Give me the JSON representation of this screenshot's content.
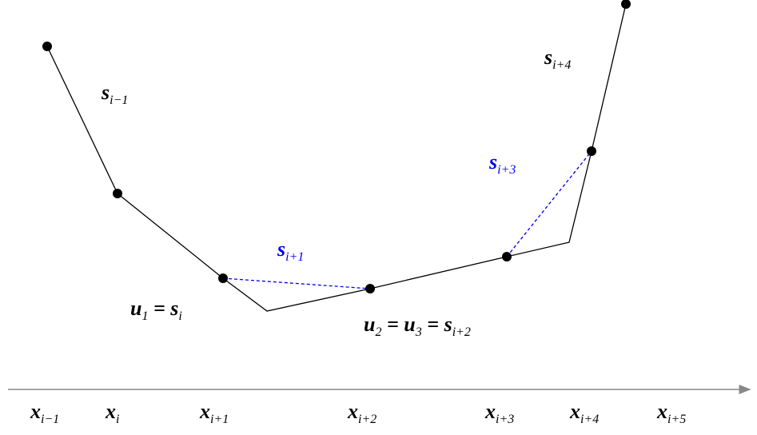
{
  "curve_labels": [
    {
      "segments": [
        {
          "text": "s",
          "sub": "i−1"
        }
      ]
    },
    {
      "segments": [
        {
          "text": "s",
          "sub": "i+4"
        }
      ]
    },
    {
      "segments": [
        {
          "text": "s",
          "sub": "i+3"
        }
      ],
      "color": "#0000ee"
    },
    {
      "segments": [
        {
          "text": "s",
          "sub": "i+1"
        }
      ],
      "color": "#0000ee"
    },
    {
      "segments": [
        {
          "text": "u",
          "sub": "1"
        },
        {
          "text": " = s",
          "sub": "i"
        }
      ]
    },
    {
      "segments": [
        {
          "text": "u",
          "sub": "2"
        },
        {
          "text": " = u",
          "sub": "3"
        },
        {
          "text": " = s",
          "sub": "i+2"
        }
      ]
    }
  ],
  "axis_labels": [
    {
      "segments": [
        {
          "text": "x",
          "sub": "i−1"
        }
      ]
    },
    {
      "segments": [
        {
          "text": "x",
          "sub": "i"
        }
      ]
    },
    {
      "segments": [
        {
          "text": "x",
          "sub": "i+1"
        }
      ]
    },
    {
      "segments": [
        {
          "text": "x",
          "sub": "i+2"
        }
      ]
    },
    {
      "segments": [
        {
          "text": "x",
          "sub": "i+3"
        }
      ]
    },
    {
      "segments": [
        {
          "text": "x",
          "sub": "i+4"
        }
      ]
    },
    {
      "segments": [
        {
          "text": "x",
          "sub": "i+5"
        }
      ]
    }
  ]
}
